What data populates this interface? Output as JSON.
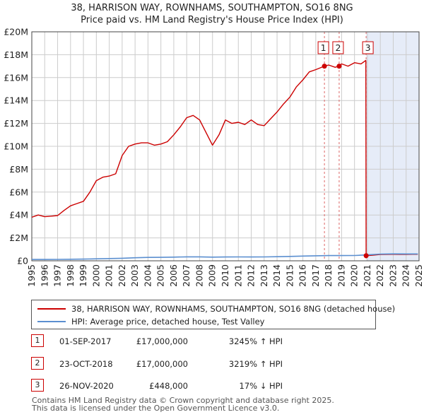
{
  "chart_data": {
    "type": "line",
    "title": "38, HARRISON WAY, ROWNHAMS, SOUTHAMPTON, SO16 8NG",
    "subtitle": "Price paid vs. HM Land Registry's House Price Index (HPI)",
    "xlabel": "",
    "ylabel": "",
    "xlim": [
      1995,
      2025
    ],
    "ylim": [
      0,
      20000000
    ],
    "x_ticks": [
      "1995",
      "1996",
      "1997",
      "1998",
      "1999",
      "2000",
      "2001",
      "2002",
      "2003",
      "2004",
      "2005",
      "2006",
      "2007",
      "2008",
      "2009",
      "2010",
      "2011",
      "2012",
      "2013",
      "2014",
      "2015",
      "2016",
      "2017",
      "2018",
      "2019",
      "2020",
      "2021",
      "2022",
      "2023",
      "2024",
      "2025"
    ],
    "y_ticks": [
      {
        "value": 0,
        "label": "£0"
      },
      {
        "value": 2000000,
        "label": "£2M"
      },
      {
        "value": 4000000,
        "label": "£4M"
      },
      {
        "value": 6000000,
        "label": "£6M"
      },
      {
        "value": 8000000,
        "label": "£8M"
      },
      {
        "value": 10000000,
        "label": "£10M"
      },
      {
        "value": 12000000,
        "label": "£12M"
      },
      {
        "value": 14000000,
        "label": "£14M"
      },
      {
        "value": 16000000,
        "label": "£16M"
      },
      {
        "value": 18000000,
        "label": "£18M"
      },
      {
        "value": 20000000,
        "label": "£20M"
      }
    ],
    "grid": true,
    "shaded_region": {
      "x_start": 2020.9,
      "x_end": 2025
    },
    "series": [
      {
        "name": "38, HARRISON WAY, ROWNHAMS, SOUTHAMPTON, SO16 8NG (detached house)",
        "color": "#cc0000",
        "x": [
          1995.0,
          1995.5,
          1996.0,
          1996.5,
          1997.0,
          1997.5,
          1998.0,
          1998.5,
          1999.0,
          1999.5,
          2000.0,
          2000.5,
          2001.0,
          2001.5,
          2002.0,
          2002.5,
          2003.0,
          2003.5,
          2004.0,
          2004.5,
          2005.0,
          2005.5,
          2006.0,
          2006.5,
          2007.0,
          2007.5,
          2008.0,
          2008.5,
          2009.0,
          2009.5,
          2010.0,
          2010.5,
          2011.0,
          2011.5,
          2012.0,
          2012.5,
          2013.0,
          2013.5,
          2014.0,
          2014.5,
          2015.0,
          2015.5,
          2016.0,
          2016.5,
          2017.0,
          2017.67,
          2018.0,
          2018.5,
          2018.81,
          2019.0,
          2019.5,
          2020.0,
          2020.5,
          2020.88,
          2020.9,
          2021.0,
          2021.5,
          2022.0,
          2022.5,
          2023.0,
          2023.5,
          2024.0,
          2024.5,
          2024.9
        ],
        "values": [
          3800000,
          4000000,
          3850000,
          3900000,
          3950000,
          4400000,
          4800000,
          5000000,
          5200000,
          6000000,
          7000000,
          7300000,
          7400000,
          7600000,
          9200000,
          10000000,
          10200000,
          10300000,
          10300000,
          10100000,
          10200000,
          10400000,
          11000000,
          11700000,
          12500000,
          12700000,
          12300000,
          11200000,
          10100000,
          11000000,
          12300000,
          12000000,
          12100000,
          11900000,
          12300000,
          11900000,
          11800000,
          12400000,
          13000000,
          13700000,
          14300000,
          15200000,
          15800000,
          16500000,
          16700000,
          17000000,
          17100000,
          16900000,
          17000000,
          17200000,
          17000000,
          17300000,
          17200000,
          17500000,
          448000,
          450000,
          500000,
          550000,
          560000,
          570000,
          560000,
          560000,
          570000,
          570000
        ]
      },
      {
        "name": "HPI: Average price, detached house, Test Valley",
        "color": "#5b8fd0",
        "x": [
          1995.0,
          1996.0,
          1997.0,
          1998.0,
          1999.0,
          2000.0,
          2001.0,
          2002.0,
          2003.0,
          2004.0,
          2005.0,
          2006.0,
          2007.0,
          2008.0,
          2009.0,
          2010.0,
          2011.0,
          2012.0,
          2013.0,
          2014.0,
          2015.0,
          2016.0,
          2017.0,
          2018.0,
          2019.0,
          2020.0,
          2021.0,
          2022.0,
          2023.0,
          2024.0,
          2024.9
        ],
        "values": [
          115000,
          118000,
          125000,
          135000,
          150000,
          172000,
          195000,
          225000,
          268000,
          295000,
          305000,
          320000,
          345000,
          348000,
          318000,
          335000,
          338000,
          336000,
          342000,
          360000,
          385000,
          415000,
          440000,
          455000,
          458000,
          465000,
          520000,
          585000,
          605000,
          598000,
          600000
        ]
      }
    ],
    "annotations": [
      {
        "label": "1",
        "x": 2017.67,
        "y": 17000000
      },
      {
        "label": "2",
        "x": 2018.81,
        "y": 17000000
      },
      {
        "label": "3",
        "x": 2020.9,
        "y": 448000
      }
    ]
  },
  "legend": {
    "items": [
      {
        "label": "38, HARRISON WAY, ROWNHAMS, SOUTHAMPTON, SO16 8NG (detached house)",
        "color": "#cc0000"
      },
      {
        "label": "HPI: Average price, detached house, Test Valley",
        "color": "#5b8fd0"
      }
    ]
  },
  "transactions": [
    {
      "num": "1",
      "date": "01-SEP-2017",
      "price": "£17,000,000",
      "hpi": "3245% ↑ HPI"
    },
    {
      "num": "2",
      "date": "23-OCT-2018",
      "price": "£17,000,000",
      "hpi": "3219% ↑ HPI"
    },
    {
      "num": "3",
      "date": "26-NOV-2020",
      "price": "£448,000",
      "hpi": "17% ↓ HPI"
    }
  ],
  "footer": {
    "line1": "Contains HM Land Registry data © Crown copyright and database right 2025.",
    "line2": "This data is licensed under the Open Government Licence v3.0."
  }
}
